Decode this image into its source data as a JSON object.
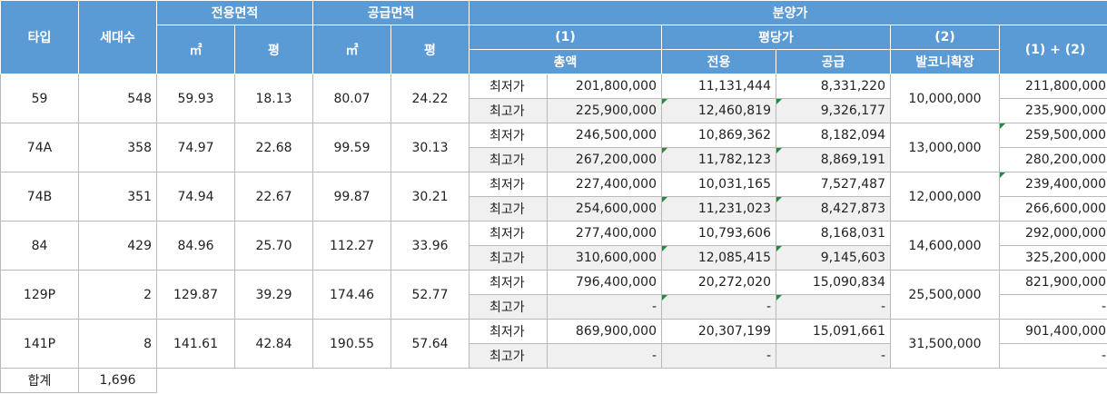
{
  "headers": {
    "type": "타입",
    "households": "세대수",
    "exclusive_area": "전용면적",
    "supply_area": "공급면적",
    "sqm": "㎡",
    "pyeong": "평",
    "sale_price": "분양가",
    "col1": "(1)",
    "total": "총액",
    "per_pyeong": "평당가",
    "per_excl": "전용",
    "per_supply": "공급",
    "col2": "(2)",
    "balcony": "발코니확장",
    "sum": "(1) + (2)"
  },
  "rows": [
    {
      "type": "59",
      "households": "548",
      "ex_sqm": "59.93",
      "ex_py": "18.13",
      "sp_sqm": "80.07",
      "sp_py": "24.22",
      "balcony": "10,000,000",
      "min": {
        "label": "최저가",
        "total": "201,800,000",
        "per_ex": "11,131,444",
        "per_sp": "8,331,220",
        "sum": "211,800,000"
      },
      "max": {
        "label": "최고가",
        "total": "225,900,000",
        "per_ex": "12,460,819",
        "per_sp": "9,326,177",
        "sum": "235,900,000"
      }
    },
    {
      "type": "74A",
      "households": "358",
      "ex_sqm": "74.97",
      "ex_py": "22.68",
      "sp_sqm": "99.59",
      "sp_py": "30.13",
      "balcony": "13,000,000",
      "min": {
        "label": "최저가",
        "total": "246,500,000",
        "per_ex": "10,869,362",
        "per_sp": "8,182,094",
        "sum": "259,500,000"
      },
      "max": {
        "label": "최고가",
        "total": "267,200,000",
        "per_ex": "11,782,123",
        "per_sp": "8,869,191",
        "sum": "280,200,000"
      }
    },
    {
      "type": "74B",
      "households": "351",
      "ex_sqm": "74.94",
      "ex_py": "22.67",
      "sp_sqm": "99.87",
      "sp_py": "30.21",
      "balcony": "12,000,000",
      "min": {
        "label": "최저가",
        "total": "227,400,000",
        "per_ex": "10,031,165",
        "per_sp": "7,527,487",
        "sum": "239,400,000"
      },
      "max": {
        "label": "최고가",
        "total": "254,600,000",
        "per_ex": "11,231,023",
        "per_sp": "8,427,873",
        "sum": "266,600,000"
      }
    },
    {
      "type": "84",
      "households": "429",
      "ex_sqm": "84.96",
      "ex_py": "25.70",
      "sp_sqm": "112.27",
      "sp_py": "33.96",
      "balcony": "14,600,000",
      "min": {
        "label": "최저가",
        "total": "277,400,000",
        "per_ex": "10,793,606",
        "per_sp": "8,168,031",
        "sum": "292,000,000"
      },
      "max": {
        "label": "최고가",
        "total": "310,600,000",
        "per_ex": "12,085,415",
        "per_sp": "9,145,603",
        "sum": "325,200,000"
      }
    },
    {
      "type": "129P",
      "households": "2",
      "ex_sqm": "129.87",
      "ex_py": "39.29",
      "sp_sqm": "174.46",
      "sp_py": "52.77",
      "balcony": "25,500,000",
      "min": {
        "label": "최저가",
        "total": "796,400,000",
        "per_ex": "20,272,020",
        "per_sp": "15,090,834",
        "sum": "821,900,000"
      },
      "max": {
        "label": "최고가",
        "total": "-",
        "per_ex": "-",
        "per_sp": "-",
        "sum": "-"
      }
    },
    {
      "type": "141P",
      "households": "8",
      "ex_sqm": "141.61",
      "ex_py": "42.84",
      "sp_sqm": "190.55",
      "sp_py": "57.64",
      "balcony": "31,500,000",
      "min": {
        "label": "최저가",
        "total": "869,900,000",
        "per_ex": "20,307,199",
        "per_sp": "15,091,661",
        "sum": "901,400,000"
      },
      "max": {
        "label": "최고가",
        "total": "-",
        "per_ex": "-",
        "per_sp": "-",
        "sum": "-"
      }
    }
  ],
  "footer": {
    "label": "합계",
    "households": "1,696"
  },
  "colors": {
    "header_bg": "#5b9bd5",
    "header_text": "#ffffff",
    "shade": "#f0f0f0",
    "flag": "#1e8e3e"
  }
}
